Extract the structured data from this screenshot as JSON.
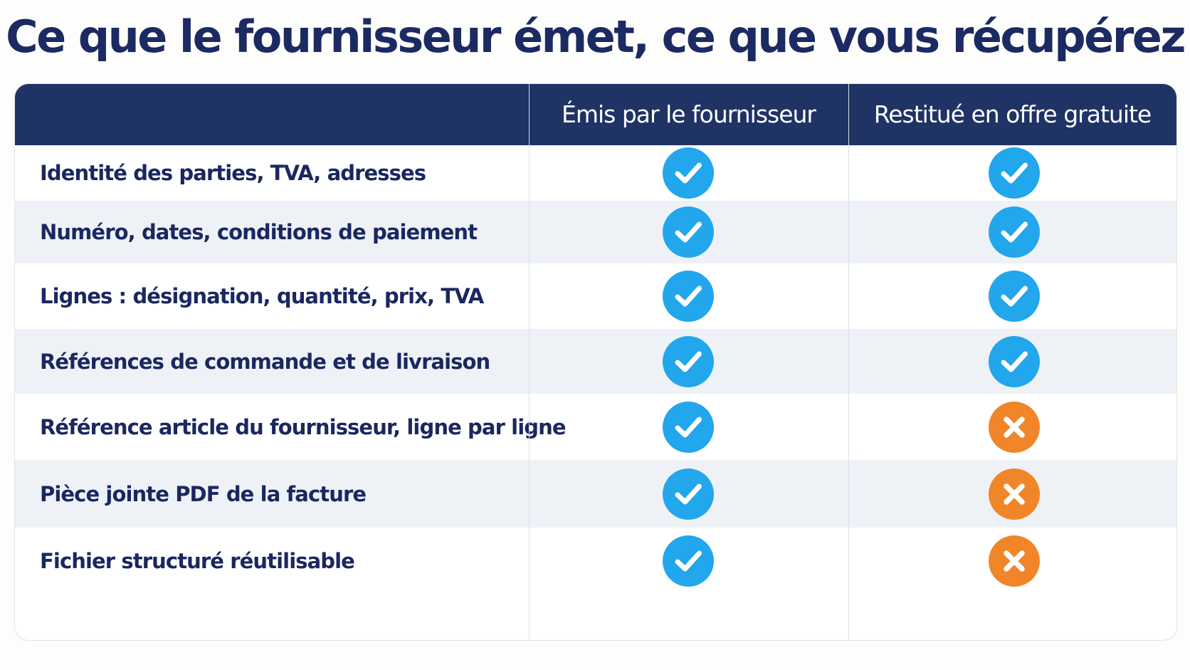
{
  "title": "Ce que le fournisseur émet, ce que vous récupérez",
  "columns": [
    "",
    "Émis par le fournisseur",
    "Restitué en offre gratuite"
  ],
  "rows": [
    {
      "label": "Identité des parties, TVA, adresses",
      "emitted": "check-icon",
      "restored": "check-icon"
    },
    {
      "label": "Numéro, dates, conditions de paiement",
      "emitted": "check-icon",
      "restored": "check-icon"
    },
    {
      "label": "Lignes : désignation, quantité, prix, TVA",
      "emitted": "check-icon",
      "restored": "check-icon"
    },
    {
      "label": "Références de commande et de livraison",
      "emitted": "check-icon",
      "restored": "check-icon"
    },
    {
      "label": "Référence article du fournisseur, ligne par ligne",
      "emitted": "check-icon",
      "restored": "cross-icon"
    },
    {
      "label": "Pièce jointe PDF de la facture",
      "emitted": "check-icon",
      "restored": "cross-icon"
    },
    {
      "label": "Fichier structuré réutilisable",
      "emitted": "check-icon",
      "restored": "cross-icon"
    }
  ],
  "colors": {
    "title": "#1c2a63",
    "header_bg": "#1f3365",
    "row_text": "#1a2760",
    "alt_row_bg": "#eef2f7",
    "check": "#22a6ec",
    "cross": "#f0852a"
  }
}
